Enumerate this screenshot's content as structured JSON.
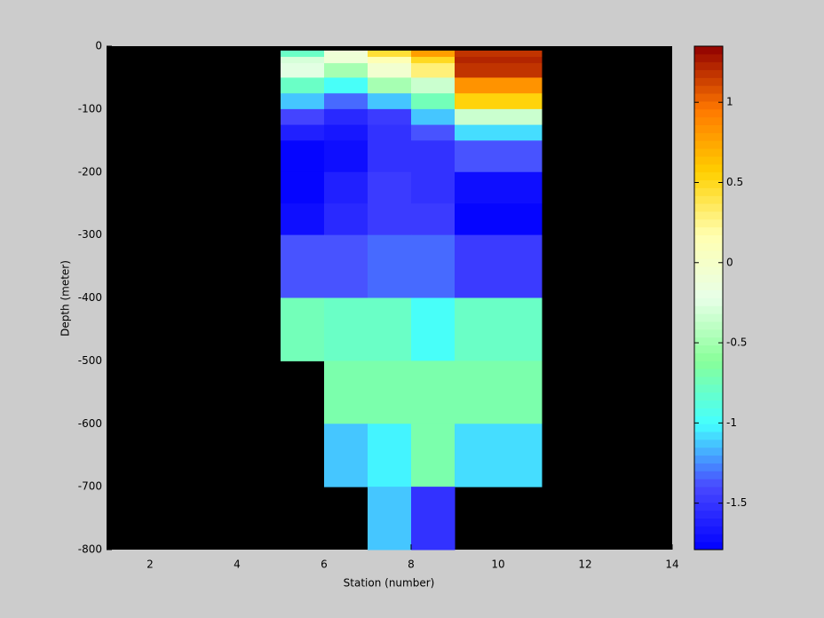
{
  "chart_data": {
    "type": "heatmap",
    "xlabel": "Station (number)",
    "ylabel": "Depth (meter)",
    "xlim": [
      1,
      14
    ],
    "ylim": [
      -800,
      0
    ],
    "xticks": [
      2,
      4,
      6,
      8,
      10,
      12,
      14
    ],
    "yticks": [
      0,
      -100,
      -200,
      -300,
      -400,
      -500,
      -600,
      -700,
      -800
    ],
    "x_edges": [
      5,
      6,
      7,
      8,
      9,
      11
    ],
    "y_edges": [
      -7,
      -17,
      -27,
      -50,
      -75,
      -100,
      -125,
      -150,
      -200,
      -250,
      -300,
      -400,
      -500,
      -600,
      -700,
      -800
    ],
    "values": [
      [
        -0.8,
        -0.1,
        0.45,
        0.8,
        1.2
      ],
      [
        -0.3,
        -0.1,
        0.15,
        0.5,
        1.25
      ],
      [
        -0.25,
        -0.5,
        -0.05,
        0.3,
        1.2
      ],
      [
        -0.8,
        -1.0,
        -0.5,
        -0.35,
        0.85
      ],
      [
        -1.15,
        -1.3,
        -1.15,
        -0.75,
        0.55
      ],
      [
        -1.4,
        -1.55,
        -1.45,
        -1.15,
        -0.35
      ],
      [
        -1.6,
        -1.65,
        -1.5,
        -1.35,
        -1.1
      ],
      [
        -1.79,
        -1.7,
        -1.5,
        -1.5,
        -1.35
      ],
      [
        -1.79,
        -1.6,
        -1.45,
        -1.5,
        -1.7
      ],
      [
        -1.7,
        -1.55,
        -1.45,
        -1.45,
        -1.79
      ],
      [
        -1.35,
        -1.35,
        -1.3,
        -1.3,
        -1.45
      ],
      [
        -0.75,
        -0.8,
        -0.8,
        -0.98,
        -0.8
      ],
      [
        null,
        -0.7,
        -0.7,
        -0.7,
        -0.7
      ],
      [
        null,
        -1.15,
        -1.05,
        -0.7,
        -1.1
      ],
      [
        null,
        null,
        -1.15,
        -1.5,
        null
      ]
    ],
    "background": "#000000",
    "colorbar": {
      "clim": [
        -1.79,
        1.35
      ],
      "ticks": [
        -1.5,
        -1,
        -0.5,
        0,
        0.5,
        1
      ],
      "colormap": [
        "#0000ff",
        "#4848ff",
        "#44ffff",
        "#88ff99",
        "#e8ffe8",
        "#ffffb0",
        "#ffd000",
        "#ff7700",
        "#900000"
      ]
    }
  }
}
